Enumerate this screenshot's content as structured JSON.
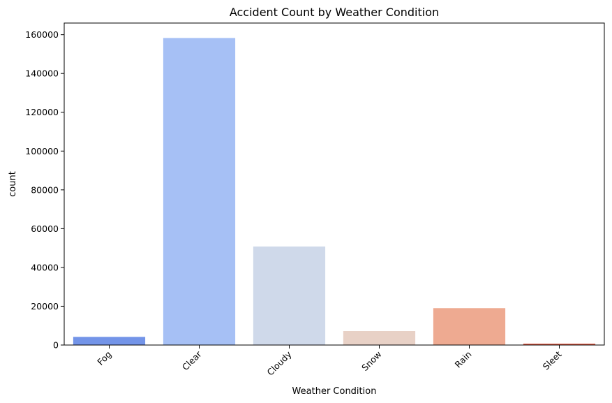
{
  "chart_data": {
    "type": "bar",
    "title": "Accident Count by Weather Condition",
    "xlabel": "Weather Condition",
    "ylabel": "count",
    "categories": [
      "Fog",
      "Clear",
      "Cloudy",
      "Snow",
      "Rain",
      "Sleet"
    ],
    "values": [
      4200,
      158300,
      50800,
      7200,
      19000,
      700
    ],
    "colors": [
      "#7394e8",
      "#a6c0f5",
      "#cfd9ea",
      "#e8d1c6",
      "#eeaa91",
      "#dc5842"
    ],
    "ylim": [
      0,
      166000
    ],
    "yticks": [
      0,
      20000,
      40000,
      60000,
      80000,
      100000,
      120000,
      140000,
      160000
    ],
    "grid": false,
    "legend": "none"
  }
}
